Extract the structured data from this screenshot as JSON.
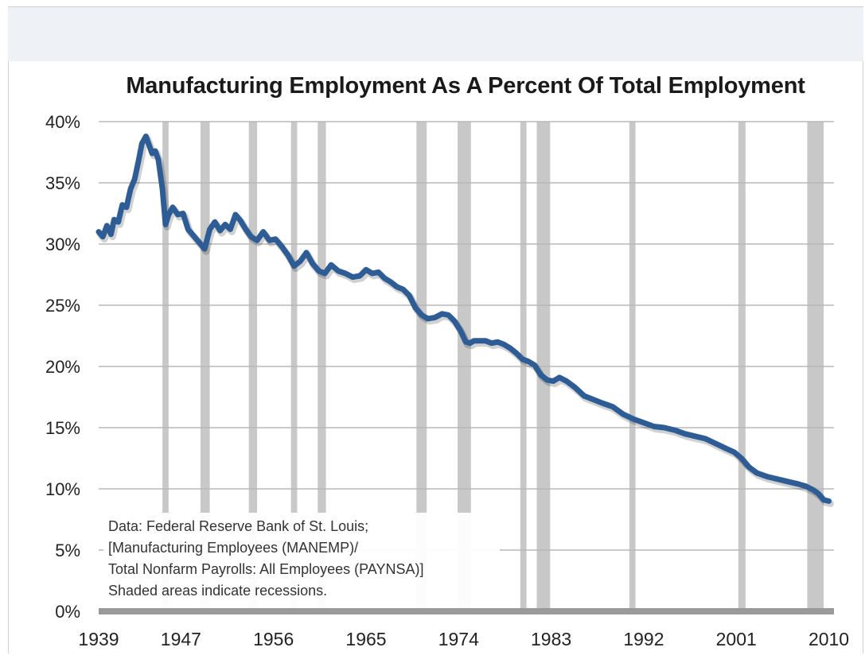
{
  "chart_data": {
    "type": "line",
    "title": "Manufacturing Employment As A Percent Of Total Employment",
    "xlabel": "",
    "ylabel": "",
    "xlim": [
      1939,
      2010.5
    ],
    "ylim": [
      0,
      40
    ],
    "grid": true,
    "y_ticks": [
      "0%",
      "5%",
      "10%",
      "15%",
      "20%",
      "25%",
      "30%",
      "35%",
      "40%"
    ],
    "y_tick_values": [
      0,
      5,
      10,
      15,
      20,
      25,
      30,
      35,
      40
    ],
    "x_ticks": [
      "1939",
      "1947",
      "1956",
      "1965",
      "1974",
      "1983",
      "1992",
      "2001",
      "2010"
    ],
    "x_tick_values": [
      1939,
      1947,
      1956,
      1965,
      1974,
      1983,
      1992,
      2001,
      2010
    ],
    "recessions": [
      [
        1945.2,
        1945.8
      ],
      [
        1948.9,
        1949.8
      ],
      [
        1953.6,
        1954.4
      ],
      [
        1957.7,
        1958.3
      ],
      [
        1960.3,
        1961.1
      ],
      [
        1969.9,
        1970.9
      ],
      [
        1973.9,
        1975.2
      ],
      [
        1980.0,
        1980.6
      ],
      [
        1981.6,
        1982.9
      ],
      [
        1990.6,
        1991.2
      ],
      [
        2001.2,
        2001.9
      ],
      [
        2007.9,
        2009.5
      ]
    ],
    "series": [
      {
        "color": "#2e5d96",
        "x": [
          1939.0,
          1939.4,
          1939.8,
          1940.2,
          1940.5,
          1940.9,
          1941.3,
          1941.7,
          1942.1,
          1942.5,
          1942.9,
          1943.2,
          1943.6,
          1943.9,
          1944.2,
          1944.5,
          1944.8,
          1945.2,
          1945.5,
          1945.8,
          1946.2,
          1946.7,
          1947.2,
          1947.7,
          1948.2,
          1948.7,
          1949.3,
          1949.8,
          1950.3,
          1950.8,
          1951.3,
          1951.8,
          1952.3,
          1952.8,
          1953.3,
          1953.8,
          1954.4,
          1955.0,
          1955.6,
          1956.2,
          1956.8,
          1957.4,
          1958.0,
          1958.6,
          1959.2,
          1959.8,
          1960.4,
          1961.0,
          1961.6,
          1962.3,
          1963.0,
          1963.7,
          1964.4,
          1965.0,
          1965.6,
          1966.2,
          1966.8,
          1967.4,
          1968.0,
          1968.6,
          1969.2,
          1969.8,
          1970.4,
          1971.0,
          1971.7,
          1972.4,
          1973.0,
          1973.6,
          1974.2,
          1974.7,
          1975.1,
          1975.5,
          1976.0,
          1976.6,
          1977.2,
          1977.8,
          1978.4,
          1979.0,
          1979.6,
          1980.2,
          1980.8,
          1981.4,
          1982.0,
          1982.6,
          1983.2,
          1983.8,
          1984.5,
          1985.3,
          1986.2,
          1987.1,
          1988.0,
          1989.0,
          1990.0,
          1991.0,
          1992.0,
          1993.0,
          1994.0,
          1995.0,
          1996.0,
          1997.0,
          1998.0,
          1999.0,
          2000.0,
          2000.8,
          2001.5,
          2002.2,
          2003.0,
          2004.0,
          2005.0,
          2006.0,
          2007.0,
          2007.8,
          2008.5,
          2009.0,
          2009.5,
          2010.0
        ],
        "values": [
          31.0,
          30.6,
          31.5,
          30.8,
          32.0,
          31.8,
          33.2,
          33.0,
          34.5,
          35.3,
          36.9,
          38.2,
          38.8,
          38.1,
          37.4,
          37.6,
          36.9,
          34.5,
          31.6,
          32.4,
          33.0,
          32.4,
          32.5,
          31.2,
          30.7,
          30.2,
          29.6,
          31.2,
          31.8,
          31.1,
          31.6,
          31.2,
          32.4,
          31.9,
          31.2,
          30.6,
          30.3,
          31.0,
          30.3,
          30.4,
          29.8,
          29.1,
          28.2,
          28.6,
          29.3,
          28.4,
          27.8,
          27.6,
          28.3,
          27.8,
          27.6,
          27.3,
          27.4,
          27.9,
          27.6,
          27.7,
          27.2,
          26.9,
          26.5,
          26.3,
          25.8,
          24.8,
          24.2,
          23.9,
          24.0,
          24.3,
          24.2,
          23.7,
          22.9,
          22.0,
          21.9,
          22.1,
          22.1,
          22.1,
          21.9,
          22.0,
          21.8,
          21.5,
          21.1,
          20.6,
          20.4,
          20.1,
          19.3,
          18.9,
          18.8,
          19.1,
          18.8,
          18.3,
          17.6,
          17.3,
          17.0,
          16.7,
          16.1,
          15.7,
          15.4,
          15.1,
          15.0,
          14.8,
          14.5,
          14.3,
          14.1,
          13.7,
          13.3,
          13.0,
          12.5,
          11.8,
          11.3,
          11.0,
          10.8,
          10.6,
          10.4,
          10.2,
          9.9,
          9.6,
          9.1,
          9.0
        ]
      }
    ],
    "annotation": [
      "Data: Federal Reserve Bank of St. Louis;",
      "[Manufacturing Employees (MANEMP)/",
      "Total Nonfarm Payrolls: All Employees (PAYNSA)]",
      "Shaded areas indicate recessions."
    ]
  }
}
